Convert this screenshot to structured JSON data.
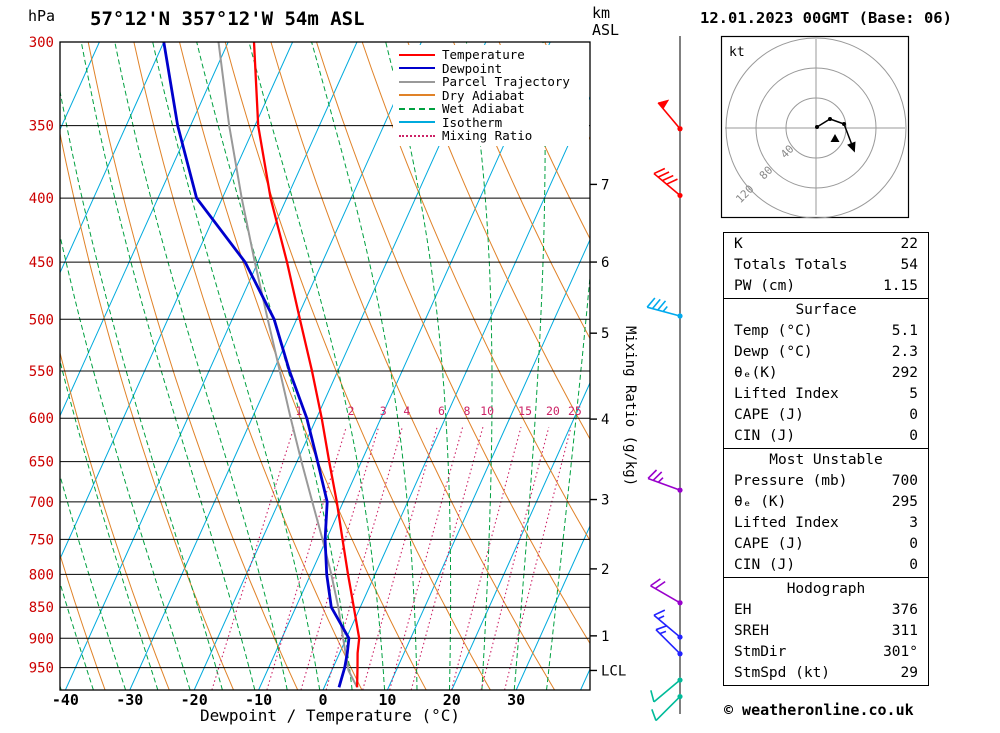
{
  "header": {
    "title": "57°12'N 357°12'W 54m ASL",
    "pressure_unit": "hPa",
    "altitude_unit_line1": "km",
    "altitude_unit_line2": "ASL",
    "datetime": "12.01.2023 00GMT (Base: 06)"
  },
  "labels": {
    "x_axis": "Dewpoint / Temperature (°C)",
    "mixing_axis": "Mixing Ratio (g/kg)"
  },
  "footer": {
    "copyright": "© weatheronline.co.uk"
  },
  "legend": [
    {
      "label": "Temperature",
      "color": "#ff0000",
      "style": "solid"
    },
    {
      "label": "Dewpoint",
      "color": "#0000cc",
      "style": "solid"
    },
    {
      "label": "Parcel Trajectory",
      "color": "#999999",
      "style": "solid"
    },
    {
      "label": "Dry Adiabat",
      "color": "#e08228",
      "style": "solid"
    },
    {
      "label": "Wet Adiabat",
      "color": "#00a040",
      "style": "dashed"
    },
    {
      "label": "Isotherm",
      "color": "#00aadd",
      "style": "solid"
    },
    {
      "label": "Mixing Ratio",
      "color": "#cc2266",
      "style": "dotted"
    }
  ],
  "panels": [
    {
      "header": null,
      "rows": [
        [
          "K",
          "22"
        ],
        [
          "Totals Totals",
          "54"
        ],
        [
          "PW (cm)",
          "1.15"
        ]
      ]
    },
    {
      "header": "Surface",
      "rows": [
        [
          "Temp (°C)",
          "5.1"
        ],
        [
          "Dewp (°C)",
          "2.3"
        ],
        [
          "θₑ(K)",
          "292"
        ],
        [
          "Lifted Index",
          "5"
        ],
        [
          "CAPE (J)",
          "0"
        ],
        [
          "CIN (J)",
          "0"
        ]
      ]
    },
    {
      "header": "Most Unstable",
      "rows": [
        [
          "Pressure (mb)",
          "700"
        ],
        [
          "θₑ (K)",
          "295"
        ],
        [
          "Lifted Index",
          "3"
        ],
        [
          "CAPE (J)",
          "0"
        ],
        [
          "CIN (J)",
          "0"
        ]
      ]
    },
    {
      "header": "Hodograph",
      "rows": [
        [
          "EH",
          "376"
        ],
        [
          "SREH",
          "311"
        ],
        [
          "StmDir",
          "301°"
        ],
        [
          "StmSpd (kt)",
          "29"
        ]
      ]
    }
  ],
  "hodograph": {
    "unit_label": "kt",
    "rings": [
      {
        "label": "40",
        "r": 30
      },
      {
        "label": "80",
        "r": 60
      },
      {
        "label": "120",
        "r": 90
      }
    ],
    "trace": [
      [
        1,
        -1
      ],
      [
        14,
        -9
      ],
      [
        28,
        -4
      ],
      [
        36,
        17
      ]
    ],
    "dots": [
      [
        1,
        -1
      ],
      [
        14,
        -9
      ],
      [
        28,
        -4
      ]
    ],
    "storm_motion": [
      19,
      11
    ]
  },
  "chart_data": {
    "type": "skewt-log-p-sounding",
    "p_range": [
      300,
      990
    ],
    "x_range_c": [
      -40,
      40
    ],
    "pressure_ticks": [
      300,
      350,
      400,
      450,
      500,
      550,
      600,
      650,
      700,
      750,
      800,
      850,
      900,
      950
    ],
    "temp_ticks": [
      -40,
      -30,
      -20,
      -10,
      0,
      10,
      20,
      30
    ],
    "km_ticks": [
      {
        "label": "7",
        "p": 390
      },
      {
        "label": "6",
        "p": 450
      },
      {
        "label": "5",
        "p": 513
      },
      {
        "label": "4",
        "p": 601
      },
      {
        "label": "3",
        "p": 697
      },
      {
        "label": "2",
        "p": 792
      },
      {
        "label": "1",
        "p": 896
      },
      {
        "label": "LCL",
        "p": 955
      }
    ],
    "mixing_ratios": [
      1,
      2,
      3,
      4,
      6,
      8,
      10,
      15,
      20,
      25
    ],
    "isotherm_step_c": 10,
    "dry_adiabat_step_k": 10,
    "wet_adiabat_step_c": 5,
    "sounding": [
      {
        "p": 985,
        "t": 5.1,
        "td": 2.3
      },
      {
        "p": 950,
        "t": 3.8,
        "td": 1.8
      },
      {
        "p": 925,
        "t": 2.8,
        "td": 1.2
      },
      {
        "p": 900,
        "t": 2.0,
        "td": 0.4
      },
      {
        "p": 850,
        "t": -1.0,
        "td": -4.5
      },
      {
        "p": 800,
        "t": -4.2,
        "td": -7.5
      },
      {
        "p": 750,
        "t": -7.5,
        "td": -10.2
      },
      {
        "p": 700,
        "t": -11.0,
        "td": -12.5
      },
      {
        "p": 650,
        "t": -15.0,
        "td": -16.8
      },
      {
        "p": 600,
        "t": -19.2,
        "td": -21.5
      },
      {
        "p": 550,
        "t": -24.0,
        "td": -27.5
      },
      {
        "p": 500,
        "t": -29.5,
        "td": -33.5
      },
      {
        "p": 450,
        "t": -35.5,
        "td": -42.0
      },
      {
        "p": 400,
        "t": -42.5,
        "td": -54.0
      },
      {
        "p": 350,
        "t": -49.5,
        "td": -62.0
      },
      {
        "p": 300,
        "t": -56.0,
        "td": -70.0
      }
    ],
    "parcel": [
      {
        "p": 985,
        "t": 5.1
      },
      {
        "p": 955,
        "t": 2.6
      },
      {
        "p": 900,
        "t": -0.5
      },
      {
        "p": 850,
        "t": -3.4
      },
      {
        "p": 800,
        "t": -6.8
      },
      {
        "p": 750,
        "t": -10.6
      },
      {
        "p": 700,
        "t": -14.8
      },
      {
        "p": 650,
        "t": -19.3
      },
      {
        "p": 600,
        "t": -24.0
      },
      {
        "p": 550,
        "t": -29.0
      },
      {
        "p": 500,
        "t": -34.5
      },
      {
        "p": 450,
        "t": -40.5
      },
      {
        "p": 400,
        "t": -47.0
      },
      {
        "p": 350,
        "t": -54.0
      },
      {
        "p": 300,
        "t": -61.5
      }
    ],
    "wind_barbs": [
      {
        "p": 352,
        "dir": 320,
        "speed": 50,
        "color": "#ff0000"
      },
      {
        "p": 398,
        "dir": 310,
        "speed": 40,
        "color": "#ff0000"
      },
      {
        "p": 497,
        "dir": 285,
        "speed": 35,
        "color": "#00aaee"
      },
      {
        "p": 685,
        "dir": 290,
        "speed": 25,
        "color": "#9900cc"
      },
      {
        "p": 843,
        "dir": 300,
        "speed": 20,
        "color": "#9900cc"
      },
      {
        "p": 898,
        "dir": 310,
        "speed": 15,
        "color": "#2222ff"
      },
      {
        "p": 926,
        "dir": 315,
        "speed": 15,
        "color": "#2222ff"
      },
      {
        "p": 972,
        "dir": 230,
        "speed": 10,
        "color": "#00bb99"
      },
      {
        "p": 1002,
        "dir": 225,
        "speed": 10,
        "color": "#00bb99"
      }
    ],
    "colors": {
      "temperature": "#ff0000",
      "dewpoint": "#0000cc",
      "parcel": "#999999",
      "dry_adiabat": "#e08228",
      "wet_adiabat": "#00a040",
      "isotherm": "#00aadd",
      "mixing_ratio": "#cc2266",
      "pressure_label": "#cc0000",
      "gridline": "#000000"
    }
  }
}
